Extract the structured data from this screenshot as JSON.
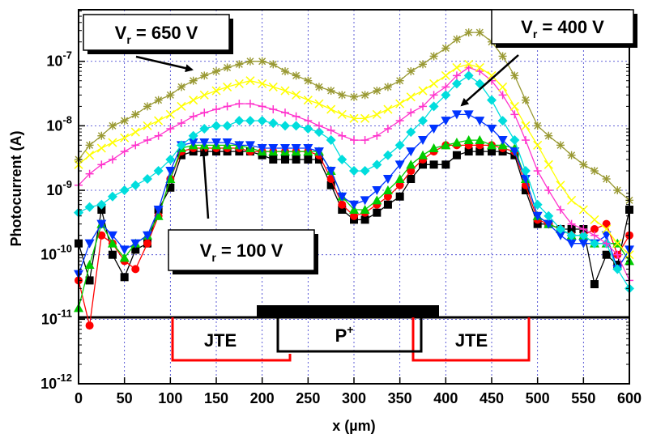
{
  "chart_data": {
    "type": "line",
    "ylabel": "Photocurrent (A)",
    "xlabel": "x (µm)",
    "xlim": [
      0,
      600
    ],
    "ylim_log10": [
      -12,
      -6.2
    ],
    "yscale": "log",
    "grid": true,
    "x_ticks": [
      "0",
      "50",
      "100",
      "150",
      "200",
      "250",
      "300",
      "350",
      "400",
      "450",
      "500",
      "550",
      "600"
    ],
    "y_ticks": [
      {
        "base": "10",
        "exp": "-12"
      },
      {
        "base": "10",
        "exp": "-11"
      },
      {
        "base": "10",
        "exp": "-10"
      },
      {
        "base": "10",
        "exp": "-9"
      },
      {
        "base": "10",
        "exp": "-8"
      },
      {
        "base": "10",
        "exp": "-7"
      }
    ],
    "x": [
      0,
      12,
      25,
      37,
      50,
      62,
      75,
      87,
      100,
      112,
      125,
      137,
      150,
      162,
      175,
      187,
      200,
      212,
      225,
      237,
      250,
      262,
      275,
      287,
      300,
      312,
      325,
      337,
      350,
      362,
      375,
      387,
      400,
      412,
      425,
      437,
      450,
      462,
      475,
      487,
      500,
      512,
      525,
      537,
      550,
      562,
      575,
      587,
      600
    ],
    "series": [
      {
        "color": "#000000",
        "marker": "square",
        "values": [
          1.5e-10,
          4e-11,
          5e-10,
          1e-10,
          4.5e-11,
          1.2e-10,
          1.5e-10,
          5e-10,
          1.1e-09,
          3.5e-09,
          4e-09,
          4e-09,
          4e-09,
          4e-09,
          4e-09,
          4e-09,
          3.5e-09,
          3e-09,
          3e-09,
          3e-09,
          3e-09,
          3e-09,
          1.2e-09,
          5e-10,
          3.5e-10,
          3.5e-10,
          4.5e-10,
          6e-10,
          8e-10,
          1.5e-09,
          2.5e-09,
          2.5e-09,
          2.5e-09,
          3.5e-09,
          4e-09,
          4e-09,
          4e-09,
          4e-09,
          3.5e-09,
          1e-09,
          3e-10,
          3e-10,
          2.5e-10,
          2.5e-10,
          2.5e-10,
          3.5e-11,
          1e-10,
          7e-11,
          5e-10
        ]
      },
      {
        "color": "#ff0000",
        "marker": "circle",
        "values": [
          4e-11,
          8e-12,
          2e-10,
          1.5e-10,
          8e-11,
          6e-11,
          1.5e-10,
          4e-10,
          1.5e-09,
          4e-09,
          4.5e-09,
          4.5e-09,
          4.5e-09,
          4.5e-09,
          4.5e-09,
          4e-09,
          4e-09,
          4e-09,
          4e-09,
          4e-09,
          4e-09,
          3.5e-09,
          1.5e-09,
          6e-10,
          4e-10,
          4.5e-10,
          6e-10,
          8e-10,
          1.2e-09,
          2e-09,
          3e-09,
          4e-09,
          5e-09,
          5e-09,
          5e-09,
          5e-09,
          5e-09,
          4.5e-09,
          4e-09,
          1.2e-09,
          3.5e-10,
          3e-10,
          2.5e-10,
          2e-10,
          2e-10,
          2.5e-10,
          3e-10,
          1e-10,
          2e-10
        ]
      },
      {
        "color": "#00cc00",
        "marker": "triangle-up",
        "values": [
          1.5e-11,
          7e-11,
          3e-10,
          1.5e-10,
          9e-11,
          1.5e-10,
          2e-10,
          4e-10,
          1.5e-09,
          4.5e-09,
          5e-09,
          5e-09,
          5e-09,
          5e-09,
          5e-09,
          4.5e-09,
          4e-09,
          4e-09,
          4e-09,
          4e-09,
          4e-09,
          4e-09,
          2e-09,
          8e-10,
          5e-10,
          5e-10,
          7e-10,
          1e-09,
          1.5e-09,
          2.5e-09,
          3.5e-09,
          4.5e-09,
          5e-09,
          5.5e-09,
          6e-09,
          6e-09,
          5e-09,
          5e-09,
          4.5e-09,
          1.5e-09,
          4e-10,
          3e-10,
          2.5e-10,
          2e-10,
          2e-10,
          1.5e-10,
          1.5e-10,
          1.5e-10,
          8e-11
        ]
      },
      {
        "color": "#0033ff",
        "marker": "triangle-down",
        "values": [
          5e-11,
          1.5e-10,
          3e-10,
          2e-10,
          1.2e-10,
          1.5e-10,
          2e-10,
          5e-10,
          2e-09,
          5e-09,
          5.5e-09,
          5.5e-09,
          5.5e-09,
          5.5e-09,
          5e-09,
          5e-09,
          4.5e-09,
          4.5e-09,
          4.5e-09,
          4.5e-09,
          4.5e-09,
          4e-09,
          2e-09,
          8e-10,
          6e-10,
          7e-10,
          1e-09,
          1.5e-09,
          2.5e-09,
          4e-09,
          6e-09,
          9e-09,
          1.2e-08,
          1.5e-08,
          1.5e-08,
          1.2e-08,
          9e-09,
          6e-09,
          4e-09,
          1.5e-09,
          4e-10,
          3e-10,
          2e-10,
          1.5e-10,
          1.5e-10,
          1.5e-10,
          2e-10,
          6e-11,
          1.2e-10
        ]
      },
      {
        "color": "#00dddd",
        "marker": "diamond",
        "values": [
          4.5e-10,
          5.5e-10,
          6e-10,
          8e-10,
          1e-09,
          1.2e-09,
          1.5e-09,
          2e-09,
          3e-09,
          5e-09,
          7e-09,
          9e-09,
          1e-08,
          1e-08,
          1.2e-08,
          1.2e-08,
          1.2e-08,
          1.1e-08,
          1e-08,
          1e-08,
          9e-09,
          8e-09,
          6e-09,
          3e-09,
          2e-09,
          2e-09,
          2.5e-09,
          3.5e-09,
          5e-09,
          8e-09,
          1.2e-08,
          2e-08,
          3e-08,
          4.5e-08,
          6e-08,
          4.5e-08,
          2.5e-08,
          1.2e-08,
          6e-09,
          2e-09,
          6e-10,
          4e-10,
          2.5e-10,
          2e-10,
          2e-10,
          1.5e-10,
          1.5e-10,
          6e-11,
          3e-11
        ]
      },
      {
        "color": "#ff33cc",
        "marker": "plus",
        "values": [
          1.2e-09,
          1.8e-09,
          2.5e-09,
          3e-09,
          4e-09,
          5e-09,
          6e-09,
          7e-09,
          9e-09,
          1.1e-08,
          1.4e-08,
          1.6e-08,
          1.8e-08,
          2e-08,
          2.2e-08,
          2.2e-08,
          2e-08,
          1.8e-08,
          1.6e-08,
          1.4e-08,
          1.2e-08,
          1e-08,
          8.5e-09,
          7e-09,
          6e-09,
          6e-09,
          7e-09,
          9e-09,
          1.2e-08,
          1.6e-08,
          2e-08,
          3e-08,
          4e-08,
          6e-08,
          8e-08,
          7e-08,
          5e-08,
          3e-08,
          1.5e-08,
          6e-09,
          2e-09,
          1e-09,
          5e-10,
          3e-10,
          2.5e-10,
          2e-10,
          1.5e-10,
          1e-10,
          4e-11
        ]
      },
      {
        "color": "#ffff00",
        "marker": "cross",
        "values": [
          2.5e-09,
          3.5e-09,
          4.5e-09,
          5.5e-09,
          6.5e-09,
          8e-09,
          1e-08,
          1.2e-08,
          1.5e-08,
          2e-08,
          2.5e-08,
          3e-08,
          3.5e-08,
          4e-08,
          4.5e-08,
          5e-08,
          4.5e-08,
          4e-08,
          3.5e-08,
          3e-08,
          2.5e-08,
          2.2e-08,
          1.8e-08,
          1.5e-08,
          1.3e-08,
          1.3e-08,
          1.5e-08,
          1.8e-08,
          2.2e-08,
          2.8e-08,
          3.5e-08,
          4.5e-08,
          6e-08,
          8e-08,
          9e-08,
          8e-08,
          6e-08,
          4e-08,
          2e-08,
          1e-08,
          5e-09,
          2.5e-09,
          1.2e-09,
          7e-10,
          5e-10,
          3.5e-10,
          2.5e-10,
          1.5e-10,
          1e-10
        ]
      },
      {
        "color": "#999933",
        "marker": "star",
        "values": [
          3e-09,
          5e-09,
          7e-09,
          1e-08,
          1.2e-08,
          1.5e-08,
          2e-08,
          2.5e-08,
          3e-08,
          4e-08,
          5e-08,
          6e-08,
          7e-08,
          8e-08,
          9e-08,
          1e-07,
          1e-07,
          9e-08,
          7e-08,
          6e-08,
          5e-08,
          4e-08,
          3.5e-08,
          3e-08,
          2.8e-08,
          3e-08,
          3.5e-08,
          4e-08,
          5e-08,
          7e-08,
          9e-08,
          1.2e-07,
          1.6e-07,
          2.2e-07,
          2.8e-07,
          2.8e-07,
          2e-07,
          1.2e-07,
          6e-08,
          2.5e-08,
          1e-08,
          7e-09,
          5e-09,
          3.5e-09,
          2.5e-09,
          2e-09,
          1.5e-09,
          1e-09,
          7e-10
        ]
      }
    ],
    "annotations": [
      {
        "text": "V",
        "sub": "r",
        "rest": " = 650 V"
      },
      {
        "text": "V",
        "sub": "r",
        "rest": " = 400 V"
      },
      {
        "text": "V",
        "sub": "r",
        "rest": " = 100 V"
      }
    ],
    "regions": [
      {
        "label": "JTE",
        "color": "#ff0000"
      },
      {
        "label": "P",
        "sup": "+",
        "color": "#000000"
      },
      {
        "label": "JTE",
        "color": "#ff0000"
      }
    ]
  }
}
